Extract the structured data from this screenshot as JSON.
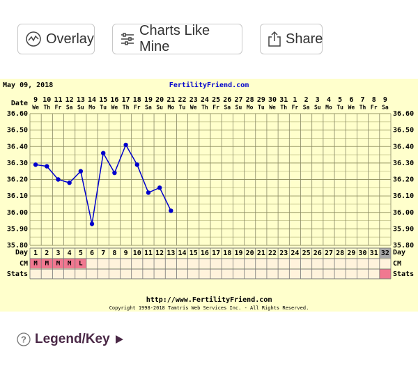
{
  "toolbar": {
    "buttons": [
      "Overlay",
      "Charts Like Mine",
      "Share"
    ]
  },
  "chart_data": {
    "type": "line",
    "date": "May 09, 2018",
    "title": "FertilityFriend.com",
    "x_label": "Date",
    "categories": [
      "9",
      "10",
      "11",
      "12",
      "13",
      "14",
      "15",
      "16",
      "17",
      "18",
      "19",
      "20",
      "21",
      "22",
      "23",
      "24",
      "25",
      "26",
      "27",
      "28",
      "29",
      "30",
      "31",
      "1",
      "2",
      "3",
      "4",
      "5",
      "6",
      "7",
      "8",
      "9"
    ],
    "weekdays": [
      "We",
      "Th",
      "Fr",
      "Sa",
      "Su",
      "Mo",
      "Tu",
      "We",
      "Th",
      "Fr",
      "Sa",
      "Su",
      "Mo",
      "Tu",
      "We",
      "Th",
      "Fr",
      "Sa",
      "Su",
      "Mo",
      "Tu",
      "We",
      "Th",
      "Fr",
      "Sa",
      "Su",
      "Mo",
      "Tu",
      "We",
      "Th",
      "Fr",
      "Sa"
    ],
    "day_label": "Day",
    "days": [
      1,
      2,
      3,
      4,
      5,
      6,
      7,
      8,
      9,
      10,
      11,
      12,
      13,
      14,
      15,
      16,
      17,
      18,
      19,
      20,
      21,
      22,
      23,
      24,
      25,
      26,
      27,
      28,
      29,
      30,
      31,
      32
    ],
    "cm_label": "CM",
    "cm": [
      "M",
      "M",
      "M",
      "M",
      "L",
      null,
      null,
      null,
      null,
      null,
      null,
      null,
      null,
      null,
      null,
      null,
      null,
      null,
      null,
      null,
      null,
      null,
      null,
      null,
      null,
      null,
      null,
      null,
      null,
      null,
      null,
      null
    ],
    "stats_label": "Stats",
    "color": "#0000cc",
    "values": [
      36.29,
      36.28,
      36.2,
      36.18,
      36.25,
      35.93,
      36.36,
      36.24,
      36.41,
      36.29,
      36.12,
      36.15,
      36.01,
      null,
      null,
      null,
      null,
      null,
      null,
      null,
      null,
      null,
      null,
      null,
      null,
      null,
      null,
      null,
      null,
      null,
      null,
      null
    ],
    "ylim": [
      35.8,
      36.6
    ],
    "yticks": [
      {
        "value": 35.8,
        "label": "35.80"
      },
      {
        "value": 35.9,
        "label": "35.90"
      },
      {
        "value": 36.0,
        "label": "36.00"
      },
      {
        "value": 36.1,
        "label": "36.10"
      },
      {
        "value": 36.2,
        "label": "36.20"
      },
      {
        "value": 36.3,
        "label": "36.30"
      },
      {
        "value": 36.4,
        "label": "36.40"
      },
      {
        "value": 36.5,
        "label": "36.50"
      },
      {
        "value": 36.6,
        "label": "36.60"
      }
    ],
    "grid": true,
    "url": "http://www.FertilityFriend.com",
    "copyright": "Copyright 1998-2018 Tamtris Web Services Inc. - All Rights Reserved."
  },
  "legend_link": "Legend/Key"
}
